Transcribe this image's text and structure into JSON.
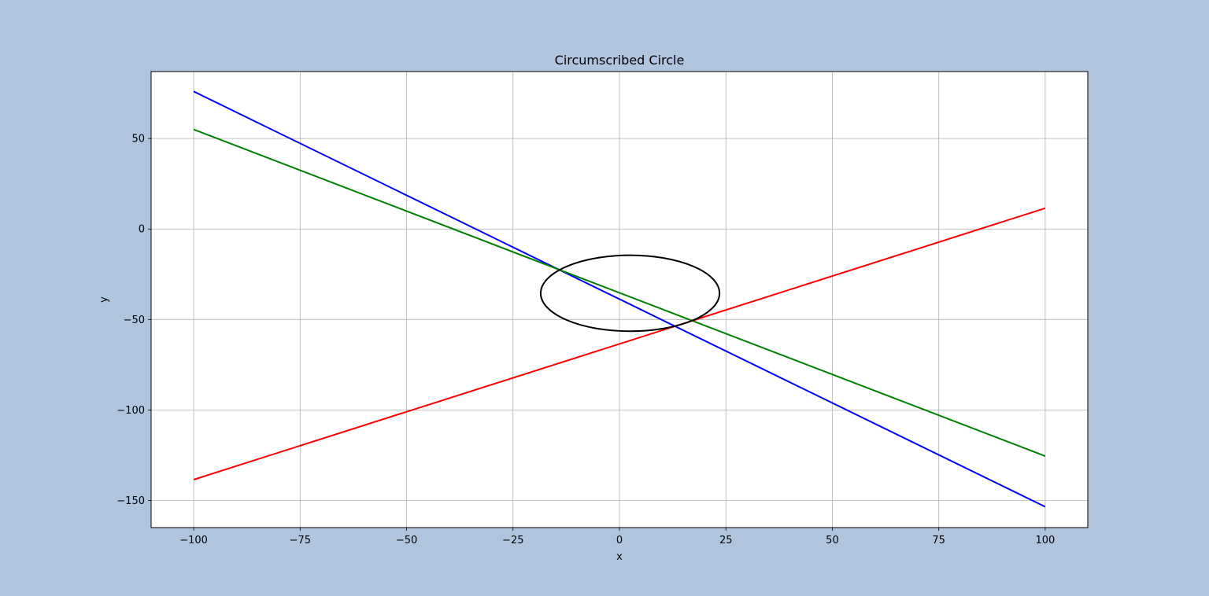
{
  "chart_data": {
    "type": "line",
    "title": "Circumscribed Circle",
    "xlabel": "x",
    "ylabel": "y",
    "xlim": [
      -110,
      110
    ],
    "ylim": [
      -165,
      87
    ],
    "x_ticks": [
      -100,
      -75,
      -50,
      -25,
      0,
      25,
      50,
      75,
      100
    ],
    "x_tick_labels": [
      "−100",
      "−75",
      "−50",
      "−25",
      "0",
      "25",
      "50",
      "75",
      "100"
    ],
    "y_ticks": [
      50,
      0,
      -50,
      -100,
      -150
    ],
    "y_tick_labels": [
      "50",
      "0",
      "−50",
      "−100",
      "−150"
    ],
    "grid": true,
    "series": [
      {
        "color": "#0000ff",
        "x": [
          -100,
          100
        ],
        "y": [
          76,
          -153.5
        ]
      },
      {
        "color": "#008000",
        "x": [
          -100,
          100
        ],
        "y": [
          55,
          -125.5
        ]
      },
      {
        "color": "#ff0000",
        "x": [
          -100,
          100
        ],
        "y": [
          -138.5,
          11.5
        ]
      }
    ],
    "circle": {
      "center": [
        2.5,
        -35.5
      ],
      "radius": 21,
      "color": "#000000"
    }
  },
  "colors": {
    "figure_background": "#b0c4de",
    "axes_background": "#ffffff",
    "grid": "#b0b0b0"
  }
}
